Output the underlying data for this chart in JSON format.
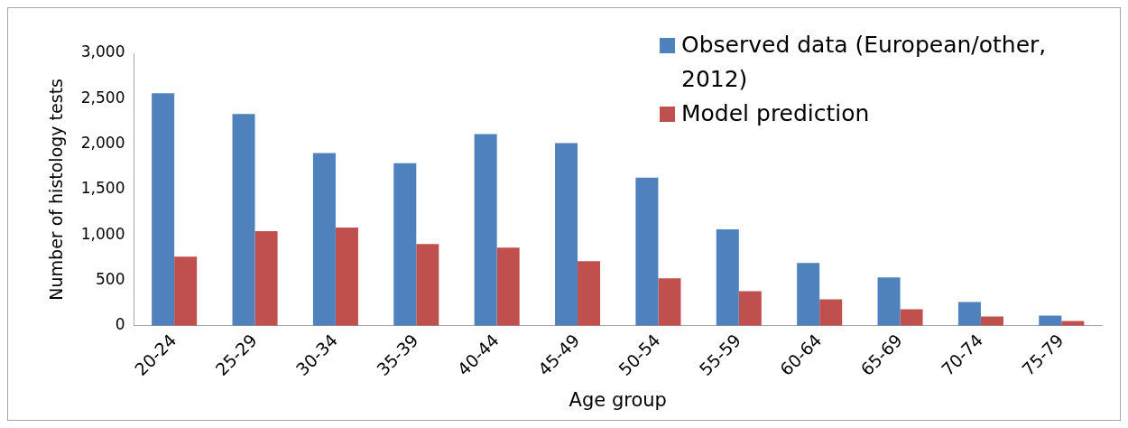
{
  "chart_data": {
    "type": "bar",
    "xlabel": "Age group",
    "ylabel": "Number of histology tests",
    "categories": [
      "20-24",
      "25-29",
      "30-34",
      "35-39",
      "40-44",
      "45-49",
      "50-54",
      "55-59",
      "60-64",
      "65-69",
      "70-74",
      "75-79"
    ],
    "series": [
      {
        "name": "Observed data (European/other, 2012)",
        "color": "#4f81bd",
        "values": [
          2560,
          2330,
          1900,
          1790,
          2110,
          2010,
          1630,
          1060,
          690,
          530,
          260,
          110
        ]
      },
      {
        "name": "Model prediction",
        "color": "#c0504d",
        "values": [
          760,
          1040,
          1080,
          900,
          860,
          710,
          520,
          380,
          290,
          180,
          100,
          50
        ]
      }
    ],
    "ylim": [
      0,
      3000
    ],
    "yticks": [
      0,
      500,
      {
        "value": 1000,
        "label": "1,000"
      },
      {
        "value": 1500,
        "label": "1,500"
      },
      {
        "value": 2000,
        "label": "2,000"
      },
      {
        "value": 2500,
        "label": "2,500"
      },
      {
        "value": 3000,
        "label": "3,000"
      }
    ],
    "grid": false,
    "legend": "top right"
  }
}
